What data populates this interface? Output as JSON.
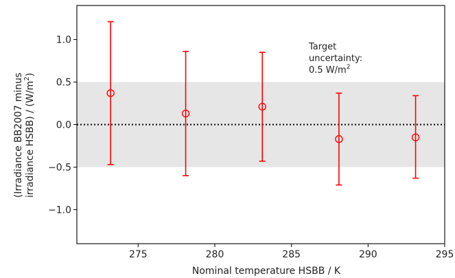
{
  "chart_data": {
    "type": "scatter",
    "xlabel": "Nominal temperature HSBB / K",
    "ylabel_line1": "(Irradiance BB2007 minus",
    "ylabel_line2": "irradiance HSBB) / (W/m",
    "ylabel_sup": "2",
    "ylabel_close": ")",
    "xlim": [
      271,
      295
    ],
    "ylim": [
      -1.4,
      1.4
    ],
    "xticks": [
      275,
      280,
      285,
      290,
      295
    ],
    "yticks": [
      1.0,
      0.5,
      0.0,
      -0.5,
      -1.0
    ],
    "ytick_labels": [
      "1.0",
      "0.5",
      "0.0",
      "−0.5",
      "−1.0"
    ],
    "band": {
      "low": -0.5,
      "high": 0.5,
      "color": "#e6e6e6"
    },
    "zero_line": {
      "y": 0.0,
      "style": "dotted",
      "color": "#000000"
    },
    "series": [
      {
        "marker": "open-circle",
        "color": "#ff0000",
        "points": [
          {
            "x": 273.2,
            "y": 0.37,
            "lo": -0.47,
            "hi": 1.21
          },
          {
            "x": 278.1,
            "y": 0.13,
            "lo": -0.6,
            "hi": 0.86
          },
          {
            "x": 283.1,
            "y": 0.21,
            "lo": -0.43,
            "hi": 0.85
          },
          {
            "x": 288.1,
            "y": -0.17,
            "lo": -0.71,
            "hi": 0.37
          },
          {
            "x": 293.1,
            "y": -0.15,
            "lo": -0.63,
            "hi": 0.34
          }
        ]
      }
    ],
    "annotation": {
      "line1": "Target",
      "line2": "uncertainty:",
      "line3_prefix": "0.5 W/m",
      "line3_sup": "2"
    }
  }
}
